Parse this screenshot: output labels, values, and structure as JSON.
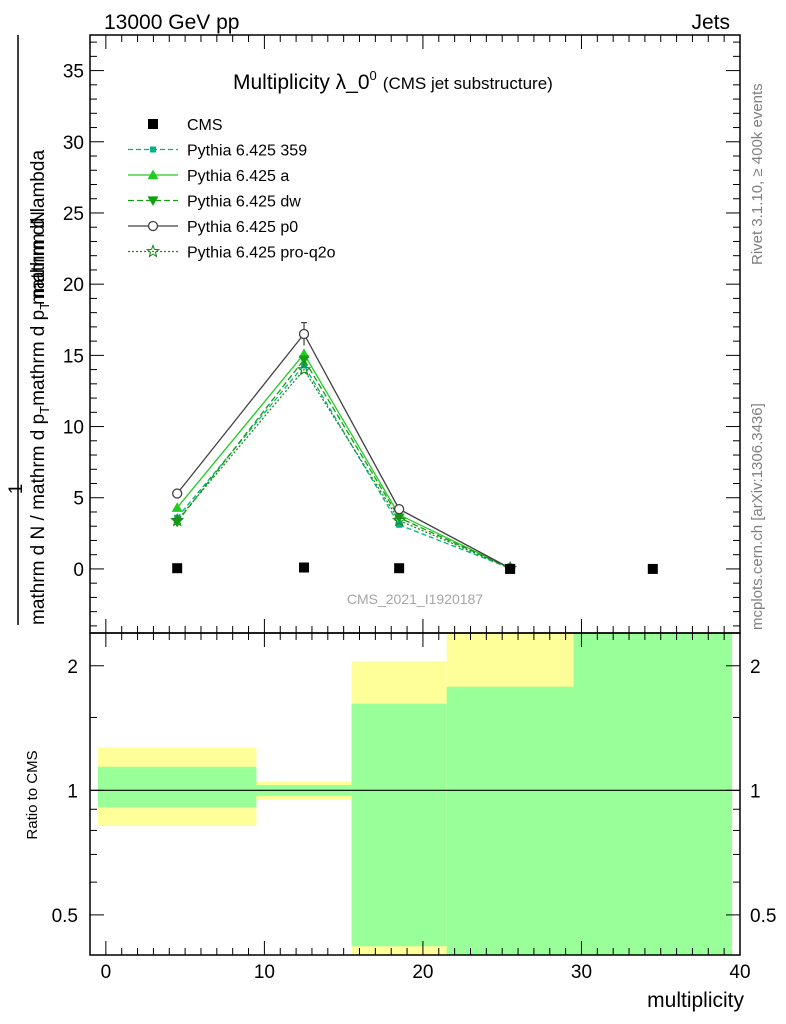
{
  "header": {
    "left_label": "13000 GeV pp",
    "right_label": "Jets"
  },
  "side_labels": {
    "rivet": "Rivet 3.1.10, ≥ 400k events",
    "mcplots": "mcplots.cern.ch [arXiv:1306.3436]"
  },
  "main_plot": {
    "title_main": "Multiplicity λ_0",
    "title_sup": "0",
    "title_paren": "(CMS jet substructure)",
    "watermark": "CMS_2021_I1920187",
    "ylabel_numerator": "mathrm dN",
    "ylabel_line1": "mathrm d N / mathrm d p",
    "ylabel_line2": "mathrm d p",
    "ylabel_line3": "mathrm d lambda",
    "ylabel_sub": "T",
    "ylabel_one": "1",
    "y_ticks": [
      "0",
      "5",
      "10",
      "15",
      "20",
      "25",
      "30",
      "35"
    ]
  },
  "ratio_plot": {
    "ylabel": "Ratio to CMS",
    "y_ticks": [
      "0.5",
      "1",
      "2"
    ],
    "x_ticks": [
      "0",
      "10",
      "20",
      "30",
      "40"
    ],
    "xlabel": "multiplicity"
  },
  "legend": [
    {
      "label": "CMS",
      "color": "#000000",
      "marker": "square",
      "dash": ""
    },
    {
      "label": "Pythia 6.425 359",
      "color": "#00b386",
      "marker": "small-square",
      "dash": "5,3"
    },
    {
      "label": "Pythia 6.425 a",
      "color": "#22cc22",
      "marker": "triangle-up",
      "dash": ""
    },
    {
      "label": "Pythia 6.425 dw",
      "color": "#10a010",
      "marker": "triangle-down",
      "dash": "6,3"
    },
    {
      "label": "Pythia 6.425 p0",
      "color": "#404040",
      "marker": "circle",
      "dash": ""
    },
    {
      "label": "Pythia 6.425 pro-q2o",
      "color": "#1e8a1e",
      "marker": "star",
      "dash": "2,2"
    }
  ],
  "chart_data": {
    "type": "line",
    "title": "Multiplicity λ_0^0 (CMS jet substructure)",
    "xlabel": "multiplicity",
    "xlim": [
      -1,
      40
    ],
    "ylim": [
      -4.5,
      37.5
    ],
    "ratio_ylim": [
      0.4,
      2.4
    ],
    "ratio_scale": "log",
    "grid": false,
    "legend_position": "top-left",
    "data": {
      "name": "CMS",
      "x": [
        4.5,
        12.5,
        18.5,
        25.5,
        34.5
      ],
      "y": [
        0.05,
        0.1,
        0.05,
        0.0,
        0.0
      ]
    },
    "series": [
      {
        "name": "Pythia 6.425 359",
        "x": [
          4.5,
          12.5,
          18.5,
          25.5
        ],
        "y": [
          3.6,
          14.3,
          3.1,
          0.05
        ]
      },
      {
        "name": "Pythia 6.425 a",
        "x": [
          4.5,
          12.5,
          18.5,
          25.5
        ],
        "y": [
          4.3,
          15.1,
          3.8,
          0.05
        ]
      },
      {
        "name": "Pythia 6.425 dw",
        "x": [
          4.5,
          12.5,
          18.5,
          25.5
        ],
        "y": [
          3.3,
          14.7,
          3.6,
          0.05
        ]
      },
      {
        "name": "Pythia 6.425 p0",
        "x": [
          4.5,
          12.5,
          18.5,
          25.5
        ],
        "y": [
          5.3,
          16.5,
          4.2,
          0.05
        ],
        "yerr": [
          0.2,
          0.8,
          0.2,
          0.0
        ]
      },
      {
        "name": "Pythia 6.425 pro-q2o",
        "x": [
          4.5,
          12.5,
          18.5,
          25.5
        ],
        "y": [
          3.4,
          14.0,
          3.4,
          0.05
        ]
      }
    ],
    "ratio_bands": [
      {
        "x0": -0.5,
        "x1": 9.5,
        "yellow": [
          0.82,
          1.27
        ],
        "green": [
          0.91,
          1.14
        ]
      },
      {
        "x0": 9.5,
        "x1": 15.5,
        "yellow": [
          0.95,
          1.05
        ],
        "green": [
          0.97,
          1.03
        ]
      },
      {
        "x0": 15.5,
        "x1": 21.5,
        "yellow": [
          0.4,
          2.05
        ],
        "green": [
          0.42,
          1.62
        ]
      },
      {
        "x0": 21.5,
        "x1": 29.5,
        "yellow": [
          0.4,
          2.4
        ],
        "green": [
          0.4,
          1.78
        ]
      },
      {
        "x0": 29.5,
        "x1": 39.5,
        "yellow": [
          0.4,
          2.4
        ],
        "green": [
          0.4,
          2.4
        ]
      }
    ]
  }
}
